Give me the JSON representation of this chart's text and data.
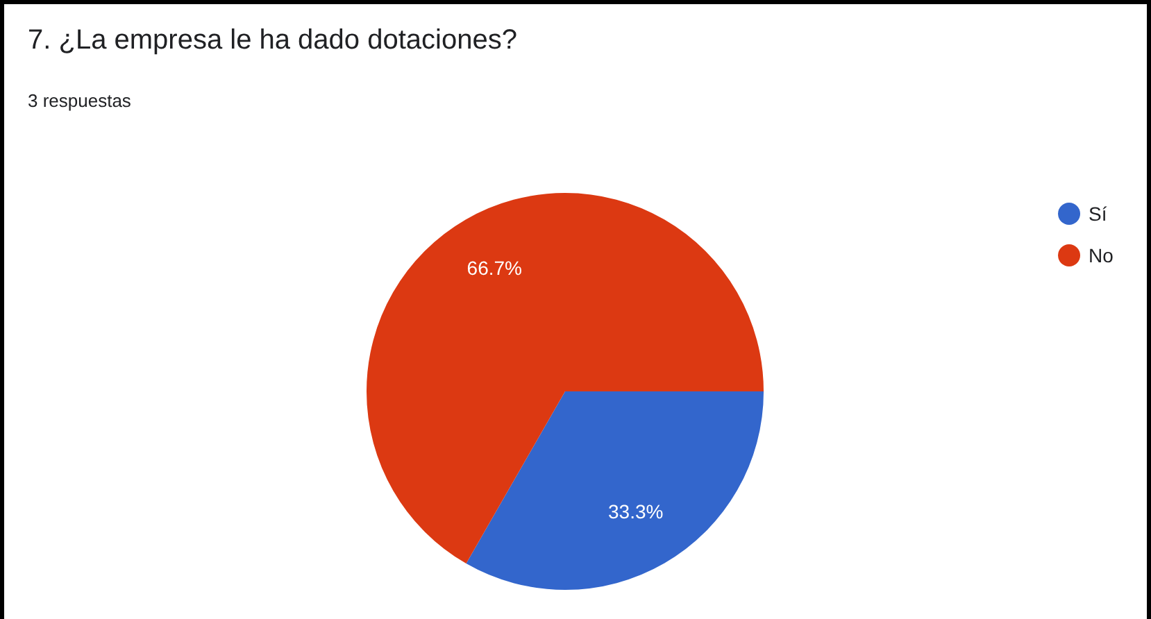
{
  "chart_data": {
    "type": "pie",
    "title": "7. ¿La empresa le ha dado dotaciones?",
    "subtitle": "3 respuestas",
    "categories": [
      "Sí",
      "No"
    ],
    "values": [
      33.3,
      66.7
    ],
    "colors": [
      "#3366cc",
      "#dc3912"
    ],
    "value_labels": [
      "33.3%",
      "66.7%"
    ],
    "legend": "top right"
  }
}
